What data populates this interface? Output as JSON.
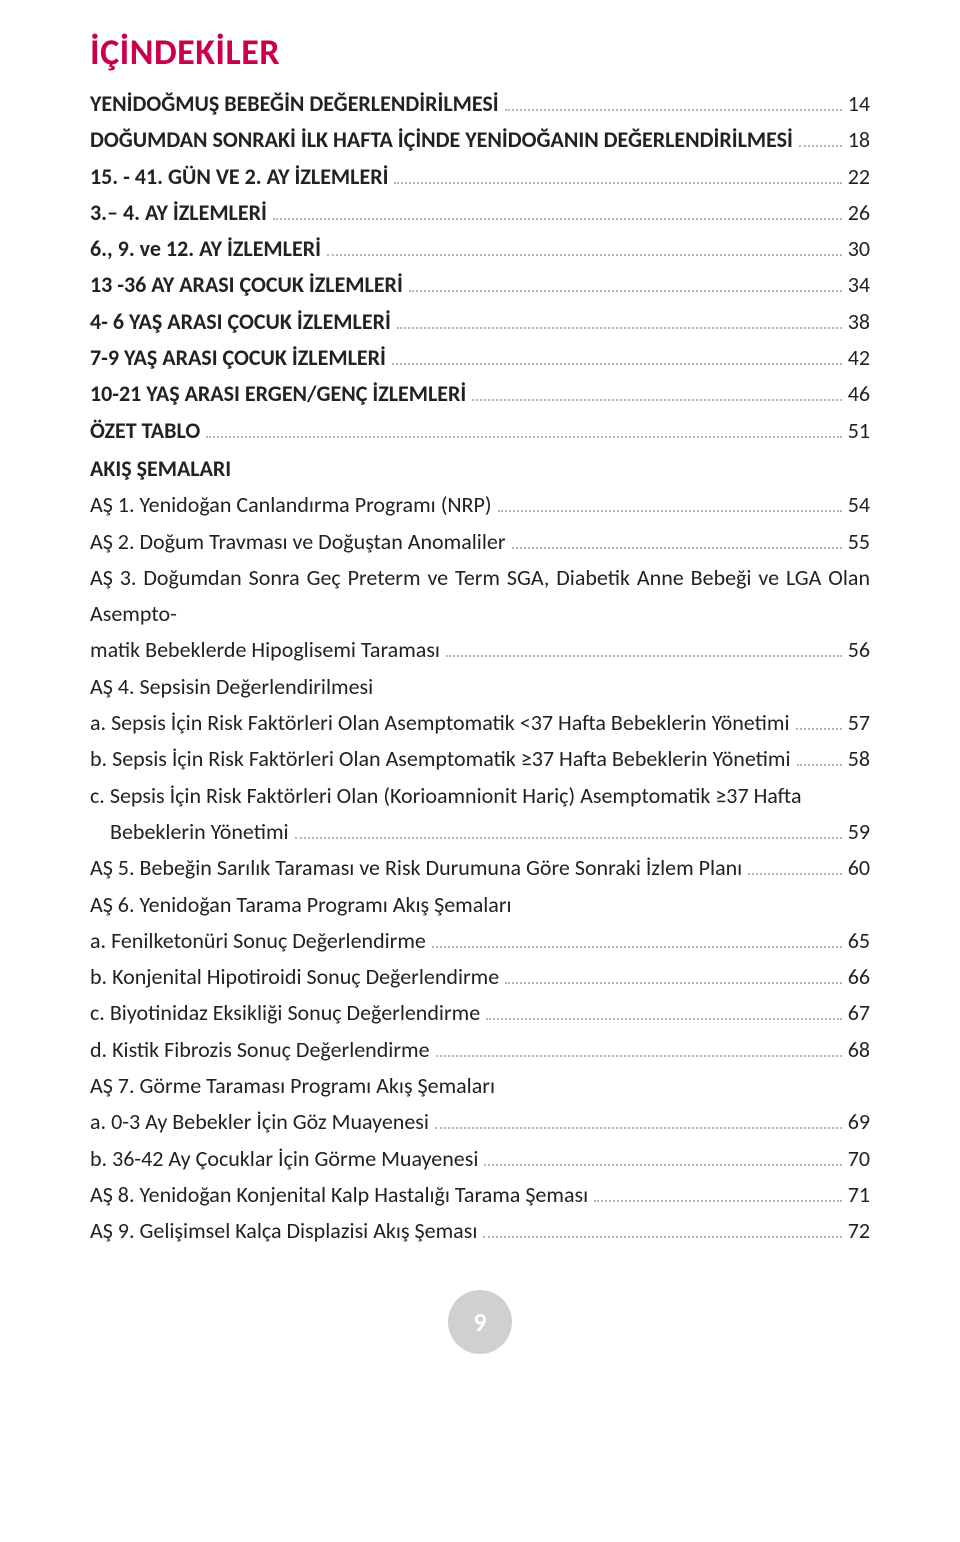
{
  "colors": {
    "title": "#c9004b",
    "text": "#222222",
    "leader": "#b5b5b5",
    "badge_bg": "#cfd0d2",
    "badge_text": "#ffffff"
  },
  "title": "İÇİNDEKİLER",
  "page_number": "9",
  "toc": {
    "items": [
      {
        "label": "YENİDOĞMUŞ BEBEĞİN DEĞERLENDİRİLMESİ",
        "page": "14",
        "bold": true
      },
      {
        "label": "DOĞUMDAN SONRAKİ İLK HAFTA İÇİNDE YENİDOĞANIN DEĞERLENDİRİLMESİ",
        "page": "18",
        "bold": true
      },
      {
        "label": "15. - 41. GÜN VE 2. AY İZLEMLERİ",
        "page": "22",
        "bold": true
      },
      {
        "label": "3.– 4. AY İZLEMLERİ",
        "page": "26",
        "bold": true
      },
      {
        "label": "6., 9. ve 12. AY İZLEMLERİ",
        "page": "30",
        "bold": true
      },
      {
        "label": "13 -36 AY ARASI ÇOCUK İZLEMLERİ",
        "page": "34",
        "bold": true
      },
      {
        "label": "4- 6 YAŞ ARASI ÇOCUK İZLEMLERİ",
        "page": "38",
        "bold": true
      },
      {
        "label": "7-9 YAŞ ARASI ÇOCUK İZLEMLERİ",
        "page": "42",
        "bold": true
      },
      {
        "label": "10-21 YAŞ ARASI ERGEN/GENÇ İZLEMLERİ",
        "page": "46",
        "bold": true
      },
      {
        "label": "ÖZET TABLO",
        "page": "51",
        "bold": true
      }
    ],
    "akis_head": "AKIŞ ŞEMALARI",
    "akis": [
      {
        "label": "AŞ 1. Yenidoğan Canlandırma Programı (NRP)",
        "page": "54"
      },
      {
        "label": "AŞ 2. Doğum Travması ve Doğuştan Anomaliler",
        "page": "55"
      }
    ],
    "as3_pre": "AŞ 3. Doğumdan Sonra Geç Preterm ve Term SGA, Diabetik Anne Bebeği ve LGA Olan Asempto-",
    "as3_last": "matik Bebeklerde Hipoglisemi Taraması",
    "as3_page": "56",
    "as4_head": "AŞ 4. Sepsisin Değerlendirilmesi",
    "as4_items": [
      {
        "label": "a. Sepsis İçin Risk Faktörleri Olan Asemptomatik <37 Hafta Bebeklerin Yönetimi",
        "page": "57"
      },
      {
        "label": "b. Sepsis İçin Risk Faktörleri Olan Asemptomatik ≥37 Hafta Bebeklerin Yönetimi",
        "page": "58"
      }
    ],
    "as4c_pre": "c. Sepsis İçin Risk Faktörleri Olan (Korioamnionit Hariç) Asemptomatik  ≥37 Hafta",
    "as4c_last": "Bebeklerin Yönetimi",
    "as4c_page": "59",
    "rest": [
      {
        "label": "AŞ 5. Bebeğin Sarılık Taraması ve Risk Durumuna Göre Sonraki İzlem Planı",
        "page": "60"
      }
    ],
    "as6_head": "AŞ 6. Yenidoğan Tarama Programı Akış Şemaları",
    "as6_items": [
      {
        "label": "a. Fenilketonüri Sonuç Değerlendirme",
        "page": "65"
      },
      {
        "label": "b. Konjenital Hipotiroidi Sonuç Değerlendirme",
        "page": "66"
      },
      {
        "label": "c. Biyotinidaz Eksikliği Sonuç Değerlendirme",
        "page": "67"
      },
      {
        "label": "d. Kistik Fibrozis Sonuç Değerlendirme",
        "page": "68"
      }
    ],
    "as7_head": "AŞ 7. Görme Taraması Programı Akış Şemaları",
    "as7_items": [
      {
        "label": "a. 0-3 Ay Bebekler İçin Göz Muayenesi",
        "page": "69"
      },
      {
        "label": "b. 36-42 Ay Çocuklar İçin Görme Muayenesi",
        "page": "70"
      }
    ],
    "rest2": [
      {
        "label": "AŞ 8. Yenidoğan Konjenital Kalp Hastalığı Tarama Şeması",
        "page": "71"
      },
      {
        "label": "AŞ  9.  Gelişimsel  Kalça  Displazisi  Akış  Şeması",
        "page": "72"
      }
    ]
  }
}
